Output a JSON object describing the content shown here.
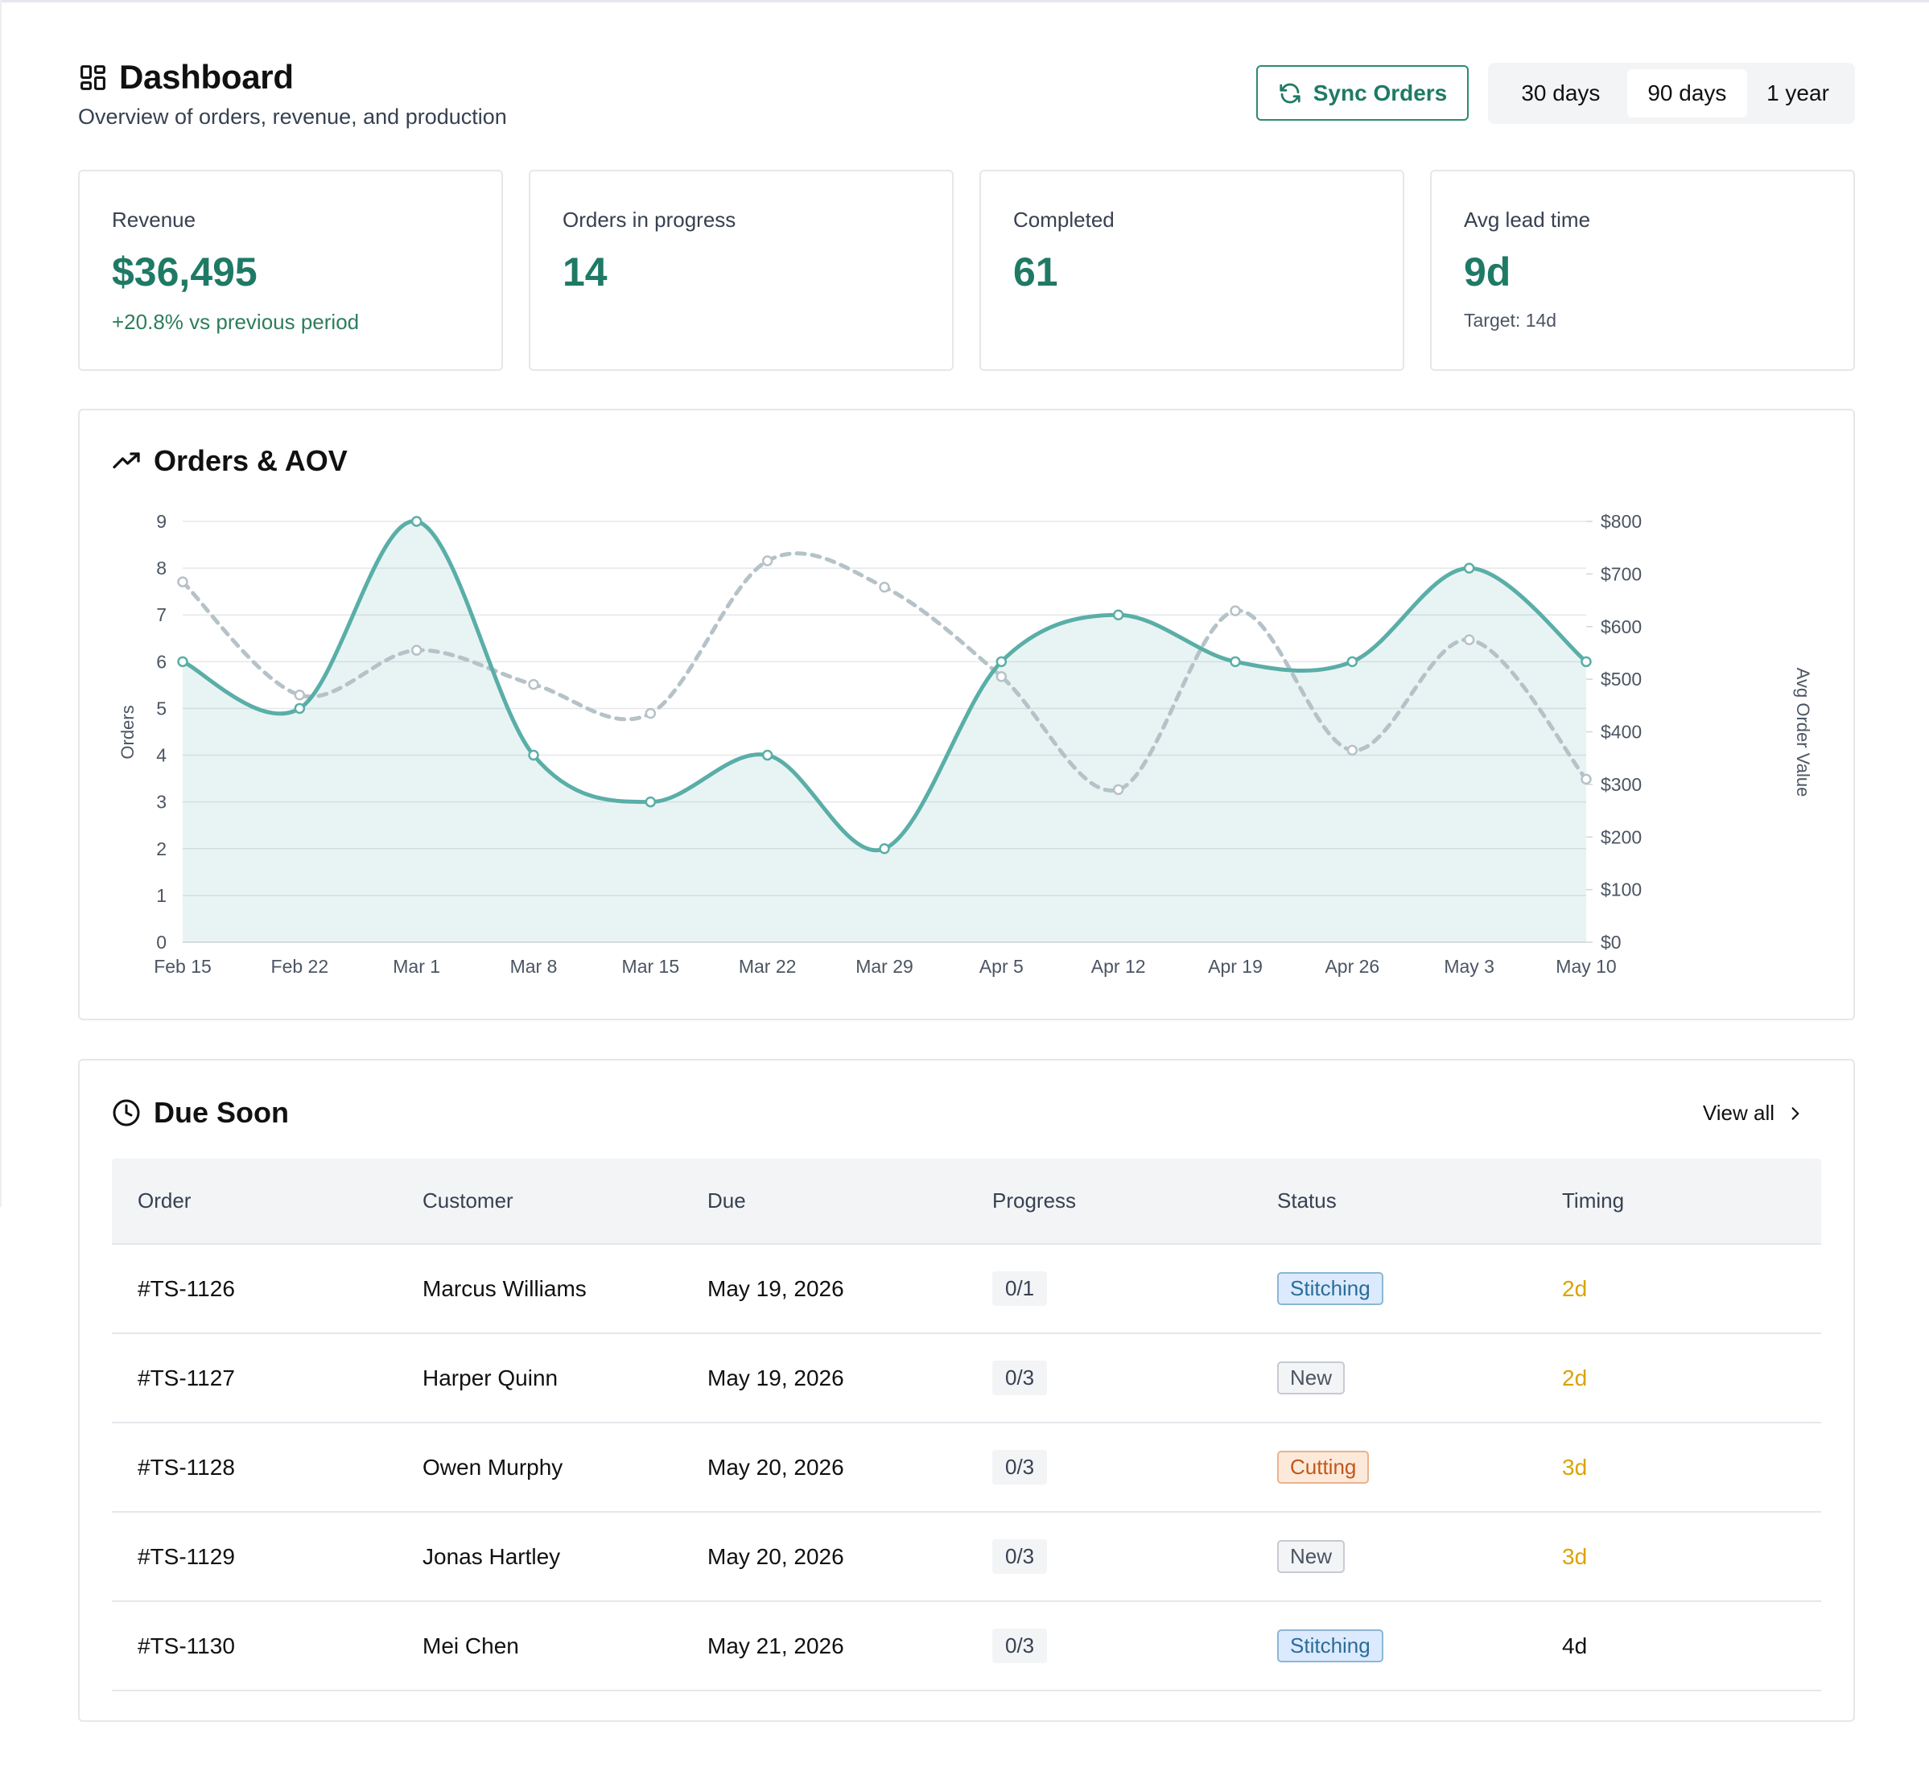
{
  "header": {
    "title": "Dashboard",
    "subtitle": "Overview of orders, revenue, and production",
    "sync_label": "Sync Orders",
    "ranges": [
      {
        "label": "30 days",
        "active": false
      },
      {
        "label": "90 days",
        "active": true
      },
      {
        "label": "1 year",
        "active": false
      }
    ]
  },
  "stats": [
    {
      "label": "Revenue",
      "value": "$36,495",
      "note": "+20.8% vs previous period",
      "note_style": "green"
    },
    {
      "label": "Orders in progress",
      "value": "14",
      "note": "",
      "note_style": "none"
    },
    {
      "label": "Completed",
      "value": "61",
      "note": "",
      "note_style": "none"
    },
    {
      "label": "Avg lead time",
      "value": "9d",
      "note": "Target: 14d",
      "note_style": "gray"
    }
  ],
  "chart_section": {
    "title": "Orders & AOV",
    "icon": "trending-up-icon"
  },
  "chart_data": {
    "type": "line",
    "categories": [
      "Feb 15",
      "Feb 22",
      "Mar 1",
      "Mar 8",
      "Mar 15",
      "Mar 22",
      "Mar 29",
      "Apr 5",
      "Apr 12",
      "Apr 19",
      "Apr 26",
      "May 3",
      "May 10"
    ],
    "series": [
      {
        "name": "Orders",
        "axis": "left",
        "style": "solid-area",
        "color": "#5aaea8",
        "values": [
          6,
          5,
          9,
          4,
          3,
          4,
          2,
          6,
          7,
          6,
          6,
          8,
          6
        ]
      },
      {
        "name": "Avg Order Value",
        "axis": "right",
        "style": "dashed",
        "color": "#b5c2c8",
        "values": [
          685,
          470,
          555,
          490,
          435,
          725,
          675,
          505,
          290,
          630,
          365,
          575,
          310
        ]
      }
    ],
    "ylabel": "Orders",
    "ylabel_right": "Avg Order Value",
    "ylim": [
      0,
      9
    ],
    "ylim_right": [
      0,
      800
    ],
    "yticks": [
      "0",
      "1",
      "2",
      "3",
      "4",
      "5",
      "6",
      "7",
      "8",
      "9"
    ],
    "yticks_right": [
      "$0",
      "$100",
      "$200",
      "$300",
      "$400",
      "$500",
      "$600",
      "$700",
      "$800"
    ],
    "grid": true
  },
  "due_section": {
    "title": "Due Soon",
    "view_all_label": "View all",
    "columns": [
      "Order",
      "Customer",
      "Due",
      "Progress",
      "Status",
      "Timing"
    ],
    "rows": [
      {
        "order": "#TS-1126",
        "customer": "Marcus Williams",
        "due": "May 19, 2026",
        "progress": "0/1",
        "status": "Stitching",
        "timing": "2d"
      },
      {
        "order": "#TS-1127",
        "customer": "Harper Quinn",
        "due": "May 19, 2026",
        "progress": "0/3",
        "status": "New",
        "timing": "2d"
      },
      {
        "order": "#TS-1128",
        "customer": "Owen Murphy",
        "due": "May 20, 2026",
        "progress": "0/3",
        "status": "Cutting",
        "timing": "3d"
      },
      {
        "order": "#TS-1129",
        "customer": "Jonas Hartley",
        "due": "May 20, 2026",
        "progress": "0/3",
        "status": "New",
        "timing": "3d"
      },
      {
        "order": "#TS-1130",
        "customer": "Mei Chen",
        "due": "May 21, 2026",
        "progress": "0/3",
        "status": "Stitching",
        "timing": "4d"
      }
    ]
  },
  "colors": {
    "accent": "#1f7a65",
    "status_stitching_bg": "#dbeafe",
    "status_stitching_text": "#2b6c98",
    "status_new_bg": "#f3f4f6",
    "status_new_text": "#4b5563",
    "status_cutting_bg": "#fde9d9",
    "status_cutting_text": "#c2571b",
    "timing_urgent": "#d9a400",
    "timing_normal": "#111111"
  }
}
